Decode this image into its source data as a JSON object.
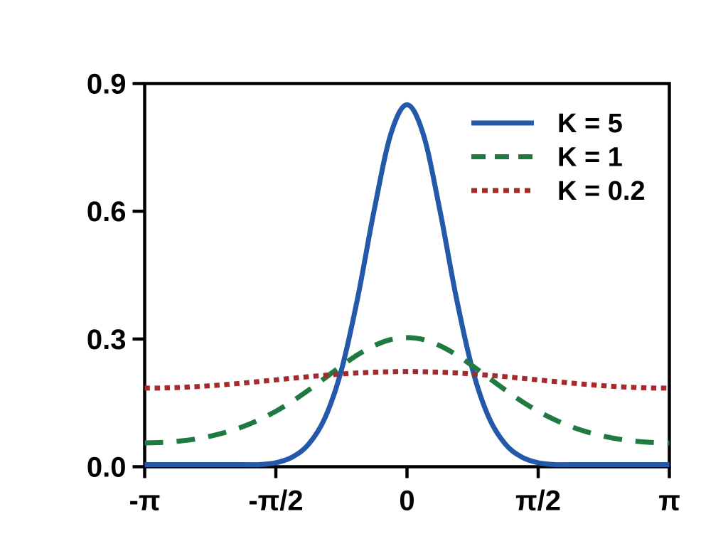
{
  "page": {
    "background": "#ffffff"
  },
  "chart_data": {
    "type": "line",
    "title": "",
    "xlabel": "",
    "ylabel": "",
    "grid": false,
    "legend_position": "upper right",
    "axis_color": "#000000",
    "xlim_over_pi": [
      -1,
      1
    ],
    "ylim": [
      0,
      0.9
    ],
    "x_ticks": [
      {
        "pos": -1.0,
        "label": "-π"
      },
      {
        "pos": -0.5,
        "label": "-π/2"
      },
      {
        "pos": 0.0,
        "label": "0"
      },
      {
        "pos": 0.5,
        "label": "π/2"
      },
      {
        "pos": 1.0,
        "label": "π"
      }
    ],
    "y_ticks": [
      {
        "pos": 0.0,
        "label": "0.0"
      },
      {
        "pos": 0.3,
        "label": "0.3"
      },
      {
        "pos": 0.6,
        "label": "0.6"
      },
      {
        "pos": 0.9,
        "label": "0.9"
      }
    ],
    "x_over_pi": [
      -1,
      -0.9375,
      -0.875,
      -0.8125,
      -0.75,
      -0.6875,
      -0.625,
      -0.5625,
      -0.5,
      -0.4375,
      -0.375,
      -0.3125,
      -0.25,
      -0.1875,
      -0.125,
      -0.0625,
      0,
      0.0625,
      0.125,
      0.1875,
      0.25,
      0.3125,
      0.375,
      0.4375,
      0.5,
      0.5625,
      0.625,
      0.6875,
      0.75,
      0.8125,
      0.875,
      0.9375,
      1
    ],
    "series": [
      {
        "name": "K = 5",
        "color": "#2458a8",
        "style": "solid",
        "values": [
          0.005,
          0.005,
          0.005,
          0.005,
          0.005,
          0.005,
          0.005,
          0.005,
          0.0094,
          0.0227,
          0.0529,
          0.115,
          0.2275,
          0.3982,
          0.6035,
          0.7796,
          0.85,
          0.7796,
          0.6035,
          0.3982,
          0.2275,
          0.115,
          0.0529,
          0.0227,
          0.0094,
          0.005,
          0.005,
          0.005,
          0.005,
          0.005,
          0.005,
          0.005,
          0.005
        ]
      },
      {
        "name": "K = 1",
        "color": "#1e7a40",
        "style": "dashed",
        "values": [
          0.056,
          0.0569,
          0.0597,
          0.0645,
          0.0717,
          0.0815,
          0.0943,
          0.1105,
          0.1303,
          0.1536,
          0.18,
          0.2084,
          0.2368,
          0.2631,
          0.2844,
          0.2985,
          0.3033,
          0.2985,
          0.2844,
          0.2631,
          0.2368,
          0.2084,
          0.18,
          0.1536,
          0.1303,
          0.1105,
          0.0943,
          0.0815,
          0.0717,
          0.0645,
          0.0597,
          0.0569,
          0.056
        ]
      },
      {
        "name": "K = 0.2",
        "color": "#a52a2e",
        "style": "dotted",
        "values": [
          0.1846,
          0.1849,
          0.186,
          0.1878,
          0.1902,
          0.1932,
          0.1965,
          0.2002,
          0.204,
          0.2078,
          0.2115,
          0.2148,
          0.2178,
          0.2202,
          0.222,
          0.2231,
          0.2235,
          0.2231,
          0.222,
          0.2202,
          0.2178,
          0.2148,
          0.2115,
          0.2078,
          0.204,
          0.2002,
          0.1965,
          0.1932,
          0.1902,
          0.1878,
          0.186,
          0.1849,
          0.1846
        ]
      }
    ]
  }
}
